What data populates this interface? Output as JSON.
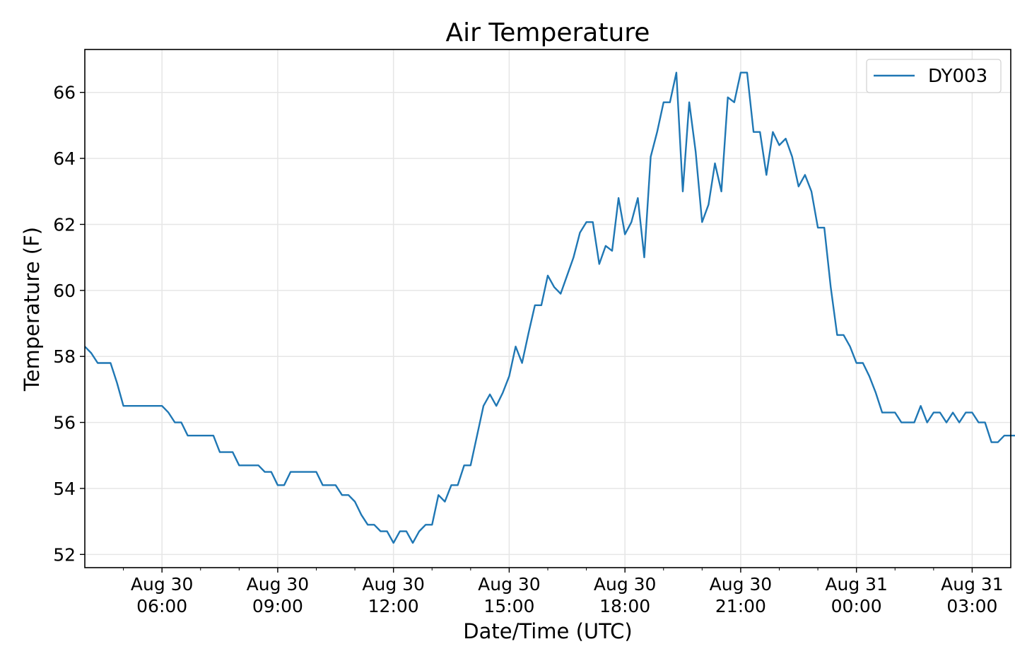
{
  "chart_data": {
    "type": "line",
    "title": "Air Temperature",
    "xlabel": "Date/Time (UTC)",
    "ylabel": "Temperature (F)",
    "x_start": "Aug 30 04:00",
    "x_end": "Aug 31 04:00",
    "x_unit": "hours since Aug 30 04:00",
    "interval_minutes": 10,
    "xlim_hours": [
      0,
      24
    ],
    "ylim": [
      51.6,
      67.3
    ],
    "grid": true,
    "legend_position": "top-right",
    "x_ticks": [
      {
        "hours": 2,
        "line1": "Aug 30",
        "line2": "06:00"
      },
      {
        "hours": 5,
        "line1": "Aug 30",
        "line2": "09:00"
      },
      {
        "hours": 8,
        "line1": "Aug 30",
        "line2": "12:00"
      },
      {
        "hours": 11,
        "line1": "Aug 30",
        "line2": "15:00"
      },
      {
        "hours": 14,
        "line1": "Aug 30",
        "line2": "18:00"
      },
      {
        "hours": 17,
        "line1": "Aug 30",
        "line2": "21:00"
      },
      {
        "hours": 20,
        "line1": "Aug 31",
        "line2": "00:00"
      },
      {
        "hours": 23,
        "line1": "Aug 31",
        "line2": "03:00"
      }
    ],
    "y_ticks": [
      "52",
      "54",
      "56",
      "58",
      "60",
      "62",
      "64",
      "66"
    ],
    "series": [
      {
        "name": "DY003",
        "color": "#1f77b4",
        "values": [
          58.3,
          58.1,
          57.8,
          57.8,
          57.8,
          57.2,
          56.5,
          56.5,
          56.5,
          56.5,
          56.5,
          56.5,
          56.5,
          56.3,
          56.0,
          56.0,
          55.6,
          55.6,
          55.6,
          55.6,
          55.6,
          55.1,
          55.1,
          55.1,
          54.7,
          54.7,
          54.7,
          54.7,
          54.5,
          54.5,
          54.1,
          54.1,
          54.5,
          54.5,
          54.5,
          54.5,
          54.5,
          54.1,
          54.1,
          54.1,
          53.8,
          53.8,
          53.6,
          53.2,
          52.9,
          52.9,
          52.7,
          52.7,
          52.35,
          52.7,
          52.7,
          52.35,
          52.7,
          52.9,
          52.9,
          53.8,
          53.6,
          54.1,
          54.1,
          54.7,
          54.7,
          55.6,
          56.5,
          56.85,
          56.5,
          56.9,
          57.4,
          58.3,
          57.8,
          58.7,
          59.55,
          59.55,
          60.45,
          60.1,
          59.9,
          60.45,
          61.0,
          61.75,
          62.07,
          62.07,
          60.8,
          61.35,
          61.2,
          62.8,
          61.7,
          62.07,
          62.8,
          61.0,
          64.05,
          64.8,
          65.7,
          65.7,
          66.6,
          63.0,
          65.7,
          64.2,
          62.07,
          62.6,
          63.85,
          63.0,
          65.85,
          65.7,
          66.6,
          66.6,
          64.8,
          64.8,
          63.5,
          64.8,
          64.4,
          64.6,
          64.05,
          63.15,
          63.5,
          63.0,
          61.9,
          61.9,
          60.1,
          58.65,
          58.65,
          58.3,
          57.8,
          57.8,
          57.4,
          56.9,
          56.3,
          56.3,
          56.3,
          56.0,
          56.0,
          56.0,
          56.5,
          56.0,
          56.3,
          56.3,
          56.0,
          56.3,
          56.0,
          56.3,
          56.3,
          56.0,
          56.0,
          55.4,
          55.4,
          55.6,
          55.6,
          55.6
        ]
      }
    ]
  }
}
